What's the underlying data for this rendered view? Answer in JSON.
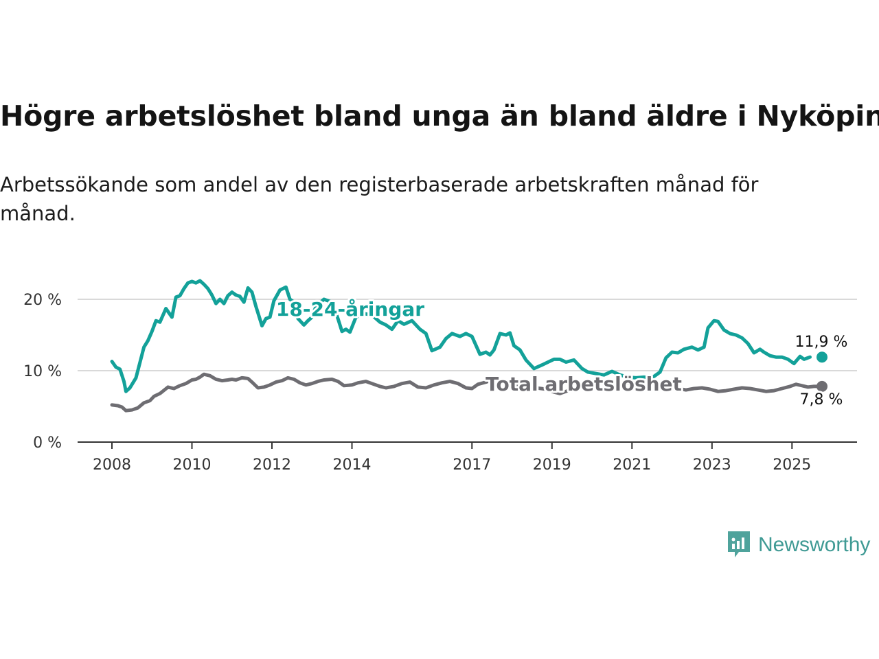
{
  "title": "Högre arbetslöshet bland unga än bland äldre i Nyköping",
  "subtitle": "Arbetssökande som andel av den registerbaserade arbetskraften månad för månad.",
  "brand": {
    "name": "Newsworthy"
  },
  "colors": {
    "youth": "#13a199",
    "total": "#6e6d72",
    "grid": "#d9d9d9",
    "axis": "#333333"
  },
  "chart_data": {
    "type": "line",
    "xlabel": "",
    "ylabel": "",
    "xlim": [
      2008,
      2025.75
    ],
    "ylim": [
      0,
      22.9
    ],
    "yticks": [
      0,
      10,
      20
    ],
    "ytick_labels": [
      "0 %",
      "10 %",
      "20 %"
    ],
    "xticks": [
      2008,
      2010,
      2012,
      2014,
      2017,
      2019,
      2021,
      2023,
      2025
    ],
    "xtick_labels": [
      "2008",
      "2010",
      "2012",
      "2014",
      "2017",
      "2019",
      "2021",
      "2023",
      "2025"
    ],
    "series": [
      {
        "name": "18-24-åringar",
        "key": "youth",
        "label": "18-24-åringar",
        "end_label": "11,9 %",
        "points": [
          [
            2008.0,
            11.3
          ],
          [
            2008.1,
            10.5
          ],
          [
            2008.2,
            10.2
          ],
          [
            2008.3,
            8.5
          ],
          [
            2008.35,
            7.1
          ],
          [
            2008.45,
            7.6
          ],
          [
            2008.6,
            9.0
          ],
          [
            2008.8,
            13.3
          ],
          [
            2008.9,
            14.2
          ],
          [
            2009.0,
            15.5
          ],
          [
            2009.1,
            17.0
          ],
          [
            2009.2,
            16.8
          ],
          [
            2009.35,
            18.7
          ],
          [
            2009.5,
            17.5
          ],
          [
            2009.6,
            20.3
          ],
          [
            2009.7,
            20.5
          ],
          [
            2009.8,
            21.5
          ],
          [
            2009.9,
            22.3
          ],
          [
            2010.0,
            22.5
          ],
          [
            2010.1,
            22.3
          ],
          [
            2010.2,
            22.6
          ],
          [
            2010.3,
            22.1
          ],
          [
            2010.4,
            21.5
          ],
          [
            2010.5,
            20.6
          ],
          [
            2010.6,
            19.4
          ],
          [
            2010.7,
            20.0
          ],
          [
            2010.8,
            19.4
          ],
          [
            2010.9,
            20.5
          ],
          [
            2011.0,
            21.0
          ],
          [
            2011.1,
            20.6
          ],
          [
            2011.2,
            20.4
          ],
          [
            2011.3,
            19.6
          ],
          [
            2011.4,
            21.6
          ],
          [
            2011.5,
            21.0
          ],
          [
            2011.6,
            19.0
          ],
          [
            2011.75,
            16.3
          ],
          [
            2011.85,
            17.3
          ],
          [
            2011.95,
            17.5
          ],
          [
            2012.05,
            19.8
          ],
          [
            2012.2,
            21.3
          ],
          [
            2012.35,
            21.7
          ],
          [
            2012.45,
            20.0
          ],
          [
            2012.55,
            19.6
          ],
          [
            2012.65,
            17.3
          ],
          [
            2012.8,
            16.4
          ],
          [
            2012.9,
            17.0
          ],
          [
            2013.0,
            17.5
          ],
          [
            2013.1,
            19.0
          ],
          [
            2013.3,
            20.0
          ],
          [
            2013.5,
            19.6
          ],
          [
            2013.65,
            17.3
          ],
          [
            2013.75,
            15.5
          ],
          [
            2013.85,
            15.8
          ],
          [
            2013.95,
            15.4
          ],
          [
            2014.1,
            17.5
          ],
          [
            2014.3,
            18.0
          ],
          [
            2014.5,
            17.8
          ],
          [
            2014.7,
            16.8
          ],
          [
            2014.85,
            16.4
          ],
          [
            2015.0,
            15.8
          ],
          [
            2015.15,
            17.0
          ],
          [
            2015.3,
            16.5
          ],
          [
            2015.5,
            17.0
          ],
          [
            2015.7,
            15.8
          ],
          [
            2015.85,
            15.2
          ],
          [
            2016.0,
            12.8
          ],
          [
            2016.2,
            13.3
          ],
          [
            2016.35,
            14.5
          ],
          [
            2016.5,
            15.2
          ],
          [
            2016.7,
            14.8
          ],
          [
            2016.85,
            15.2
          ],
          [
            2017.0,
            14.8
          ],
          [
            2017.2,
            12.3
          ],
          [
            2017.35,
            12.6
          ],
          [
            2017.45,
            12.2
          ],
          [
            2017.55,
            12.9
          ],
          [
            2017.7,
            15.2
          ],
          [
            2017.85,
            15.0
          ],
          [
            2017.95,
            15.3
          ],
          [
            2018.05,
            13.5
          ],
          [
            2018.2,
            12.9
          ],
          [
            2018.35,
            11.5
          ],
          [
            2018.55,
            10.3
          ],
          [
            2018.75,
            10.8
          ],
          [
            2018.9,
            11.2
          ],
          [
            2019.05,
            11.6
          ],
          [
            2019.2,
            11.6
          ],
          [
            2019.35,
            11.2
          ],
          [
            2019.55,
            11.5
          ],
          [
            2019.75,
            10.3
          ],
          [
            2019.9,
            9.8
          ],
          [
            2020.1,
            9.6
          ],
          [
            2020.3,
            9.4
          ],
          [
            2020.5,
            9.9
          ],
          [
            2020.7,
            9.4
          ],
          [
            2020.9,
            9.1
          ],
          [
            2021.1,
            9.0
          ],
          [
            2021.3,
            9.1
          ],
          [
            2021.5,
            9.0
          ],
          [
            2021.7,
            9.8
          ],
          [
            2021.85,
            11.8
          ],
          [
            2022.0,
            12.6
          ],
          [
            2022.15,
            12.5
          ],
          [
            2022.3,
            13.0
          ],
          [
            2022.5,
            13.3
          ],
          [
            2022.65,
            12.9
          ],
          [
            2022.8,
            13.3
          ],
          [
            2022.9,
            16.0
          ],
          [
            2023.05,
            17.0
          ],
          [
            2023.15,
            16.9
          ],
          [
            2023.3,
            15.7
          ],
          [
            2023.45,
            15.2
          ],
          [
            2023.6,
            15.0
          ],
          [
            2023.75,
            14.6
          ],
          [
            2023.9,
            13.8
          ],
          [
            2024.05,
            12.5
          ],
          [
            2024.2,
            13.0
          ],
          [
            2024.3,
            12.6
          ],
          [
            2024.45,
            12.1
          ],
          [
            2024.6,
            11.9
          ],
          [
            2024.75,
            11.9
          ],
          [
            2024.9,
            11.6
          ],
          [
            2025.05,
            11.0
          ],
          [
            2025.2,
            12.0
          ],
          [
            2025.3,
            11.6
          ],
          [
            2025.45,
            11.9
          ]
        ]
      },
      {
        "name": "Total arbetslöshet",
        "key": "total",
        "label": "Total arbetslöshet",
        "end_label": "7,8 %",
        "points": [
          [
            2008.0,
            5.2
          ],
          [
            2008.15,
            5.1
          ],
          [
            2008.25,
            4.9
          ],
          [
            2008.35,
            4.4
          ],
          [
            2008.5,
            4.5
          ],
          [
            2008.65,
            4.8
          ],
          [
            2008.8,
            5.5
          ],
          [
            2008.95,
            5.8
          ],
          [
            2009.05,
            6.4
          ],
          [
            2009.2,
            6.8
          ],
          [
            2009.4,
            7.7
          ],
          [
            2009.55,
            7.5
          ],
          [
            2009.7,
            7.9
          ],
          [
            2009.85,
            8.2
          ],
          [
            2010.0,
            8.7
          ],
          [
            2010.1,
            8.8
          ],
          [
            2010.2,
            9.1
          ],
          [
            2010.3,
            9.5
          ],
          [
            2010.45,
            9.3
          ],
          [
            2010.6,
            8.8
          ],
          [
            2010.75,
            8.6
          ],
          [
            2010.9,
            8.7
          ],
          [
            2011.0,
            8.8
          ],
          [
            2011.1,
            8.7
          ],
          [
            2011.25,
            9.0
          ],
          [
            2011.4,
            8.9
          ],
          [
            2011.5,
            8.4
          ],
          [
            2011.65,
            7.6
          ],
          [
            2011.8,
            7.7
          ],
          [
            2011.95,
            8.0
          ],
          [
            2012.1,
            8.4
          ],
          [
            2012.25,
            8.6
          ],
          [
            2012.4,
            9.0
          ],
          [
            2012.55,
            8.8
          ],
          [
            2012.7,
            8.3
          ],
          [
            2012.85,
            8.0
          ],
          [
            2013.0,
            8.2
          ],
          [
            2013.15,
            8.5
          ],
          [
            2013.3,
            8.7
          ],
          [
            2013.5,
            8.8
          ],
          [
            2013.65,
            8.5
          ],
          [
            2013.8,
            7.9
          ],
          [
            2014.0,
            8.0
          ],
          [
            2014.15,
            8.3
          ],
          [
            2014.35,
            8.5
          ],
          [
            2014.55,
            8.1
          ],
          [
            2014.7,
            7.8
          ],
          [
            2014.85,
            7.6
          ],
          [
            2015.05,
            7.8
          ],
          [
            2015.25,
            8.2
          ],
          [
            2015.45,
            8.4
          ],
          [
            2015.65,
            7.7
          ],
          [
            2015.85,
            7.6
          ],
          [
            2016.05,
            8.0
          ],
          [
            2016.25,
            8.3
          ],
          [
            2016.45,
            8.5
          ],
          [
            2016.65,
            8.2
          ],
          [
            2016.85,
            7.6
          ],
          [
            2017.0,
            7.5
          ],
          [
            2017.15,
            8.1
          ],
          [
            2017.35,
            8.4
          ],
          [
            2017.5,
            8.7
          ],
          [
            2017.7,
            8.7
          ],
          [
            2017.85,
            8.2
          ],
          [
            2018.0,
            8.0
          ],
          [
            2018.2,
            7.7
          ],
          [
            2018.4,
            7.5
          ],
          [
            2018.6,
            7.6
          ],
          [
            2018.85,
            7.4
          ],
          [
            2019.05,
            7.0
          ],
          [
            2019.2,
            6.8
          ],
          [
            2019.35,
            7.1
          ],
          [
            2019.55,
            7.5
          ],
          [
            2019.75,
            7.8
          ],
          [
            2019.95,
            8.2
          ],
          [
            2020.15,
            8.4
          ],
          [
            2020.35,
            8.5
          ],
          [
            2020.55,
            8.4
          ],
          [
            2020.75,
            8.3
          ],
          [
            2020.95,
            8.2
          ],
          [
            2021.15,
            8.0
          ],
          [
            2021.35,
            7.8
          ],
          [
            2021.55,
            7.5
          ],
          [
            2021.75,
            7.5
          ],
          [
            2021.95,
            7.7
          ],
          [
            2022.15,
            7.5
          ],
          [
            2022.35,
            7.3
          ],
          [
            2022.55,
            7.5
          ],
          [
            2022.75,
            7.6
          ],
          [
            2022.95,
            7.4
          ],
          [
            2023.15,
            7.1
          ],
          [
            2023.35,
            7.2
          ],
          [
            2023.55,
            7.4
          ],
          [
            2023.75,
            7.6
          ],
          [
            2023.95,
            7.5
          ],
          [
            2024.15,
            7.3
          ],
          [
            2024.35,
            7.1
          ],
          [
            2024.55,
            7.2
          ],
          [
            2024.75,
            7.5
          ],
          [
            2024.95,
            7.8
          ],
          [
            2025.1,
            8.1
          ],
          [
            2025.25,
            7.9
          ],
          [
            2025.4,
            7.7
          ],
          [
            2025.55,
            7.8
          ],
          [
            2025.75,
            7.8
          ]
        ]
      }
    ]
  }
}
